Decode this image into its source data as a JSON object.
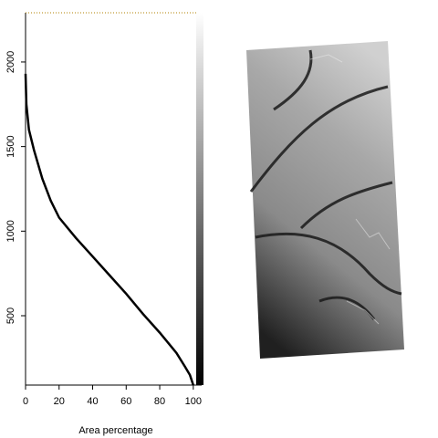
{
  "chart_data": {
    "type": "line",
    "xlabel": "Area percentage",
    "x": [
      0,
      0.5,
      2,
      5,
      10,
      15,
      20,
      30,
      40,
      50,
      60,
      70,
      80,
      90,
      95,
      98,
      100
    ],
    "series": [
      {
        "color": "#000000",
        "values": [
          1930,
          1750,
          1600,
          1480,
          1310,
          1180,
          1080,
          960,
          850,
          740,
          630,
          510,
          400,
          280,
          200,
          150,
          90
        ]
      }
    ],
    "xlim": [
      0,
      105
    ],
    "xticks": [
      0,
      20,
      40,
      60,
      80,
      100
    ],
    "ylim": [
      90,
      2291
    ],
    "yticks": [
      500,
      1000,
      1500,
      2000
    ]
  }
}
